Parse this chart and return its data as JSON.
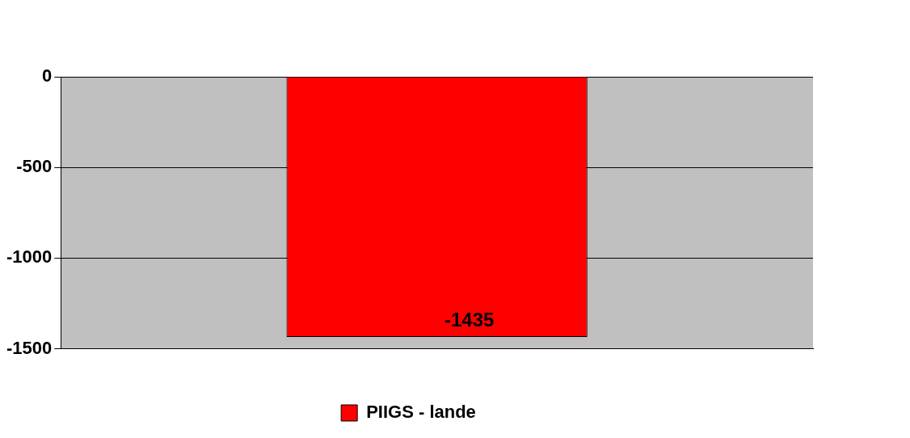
{
  "chart_data": {
    "type": "bar",
    "categories": [
      null
    ],
    "series": [
      {
        "name": "PIIGS - lande",
        "color": "#ff0000",
        "values": [
          -1435
        ]
      }
    ],
    "ylim": [
      -1500,
      0
    ],
    "yticks": [
      -1500,
      -1000,
      -500,
      0
    ],
    "grid": "y",
    "legend": "bottom",
    "data_labels": true
  }
}
